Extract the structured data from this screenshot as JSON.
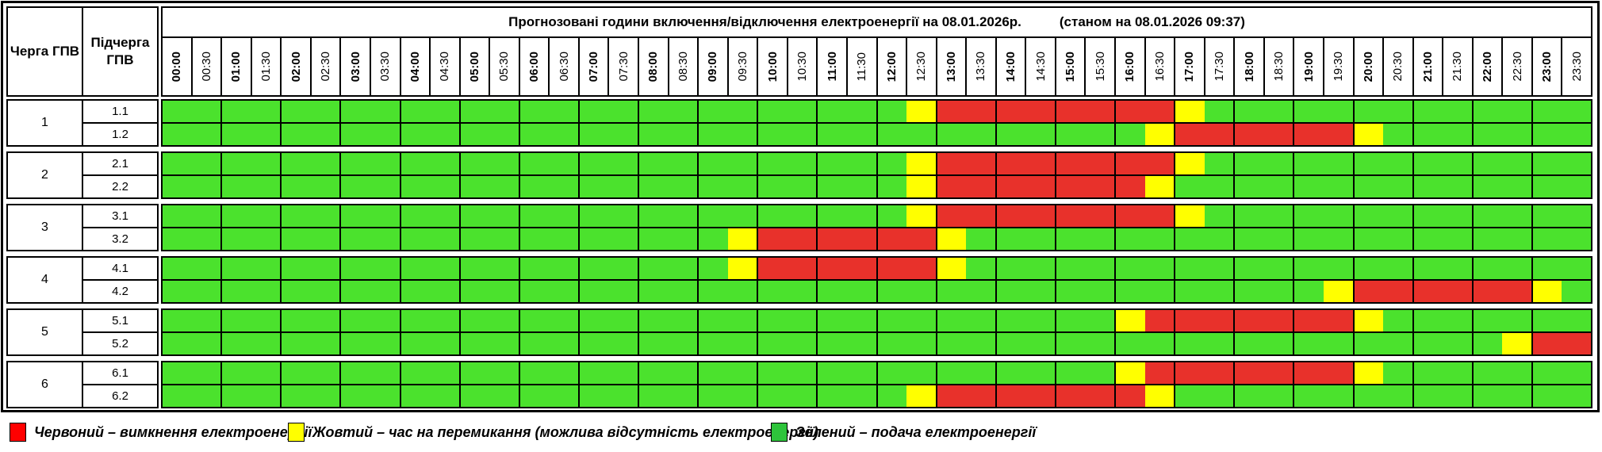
{
  "header": {
    "queue_col": "Черга ГПВ",
    "subqueue_col": "Підчерга ГПВ",
    "title": "Прогнозовані години включення/відключення електроенергії на 08.01.2026р.",
    "status": "(станом на 08.01.2026 09:37)"
  },
  "colors": {
    "cell_green": "#4BE22D",
    "cell_red": "#E8312B",
    "cell_yellow": "#FFFF00",
    "legend_red": "#FF0000",
    "legend_yellow": "#FFFF00",
    "legend_green": "#2EC43B"
  },
  "legend": {
    "red": "Червоний – вимкнення електроенергії",
    "yellow": "Жовтий – час на перемикання (можлива відсутність електроенергії)",
    "green": "Зелений – подача електроенергії"
  },
  "chart_data": {
    "type": "heatmap",
    "title": "Прогнозовані години включення/відключення електроенергії на 08.01.2026р.",
    "status": "(станом на 08.01.2026 09:37)",
    "x_labels": [
      "00:00",
      "00:30",
      "01:00",
      "01:30",
      "02:00",
      "02:30",
      "03:00",
      "03:30",
      "04:00",
      "04:30",
      "05:00",
      "05:30",
      "06:00",
      "06:30",
      "07:00",
      "07:30",
      "08:00",
      "08:30",
      "09:00",
      "09:30",
      "10:00",
      "10:30",
      "11:00",
      "11:30",
      "12:00",
      "12:30",
      "13:00",
      "13:30",
      "14:00",
      "14:30",
      "15:00",
      "15:30",
      "16:00",
      "16:30",
      "17:00",
      "17:30",
      "18:00",
      "18:30",
      "19:00",
      "19:30",
      "20:00",
      "20:30",
      "21:00",
      "21:30",
      "22:00",
      "22:30",
      "23:00",
      "23:30"
    ],
    "state_colors": {
      "G": "#4BE22D",
      "R": "#E8312B",
      "Y": "#FFFF00"
    },
    "state_meanings": {
      "G": "Зелений – подача електроенергії",
      "R": "Червоний – вимкнення електроенергії",
      "Y": "Жовтий – час на перемикання (можлива відсутність електроенергії)"
    },
    "groups": [
      {
        "queue": "1",
        "rows": [
          {
            "label": "1.1",
            "cells": "GGGGGGGGGGGGGGGGGGGGGGGGGYRRRRRRRRYGGGGGGGGGGGGG"
          },
          {
            "label": "1.2",
            "cells": "GGGGGGGGGGGGGGGGGGGGGGGGGGGGGGGGGYRRRRRRYGGGGGGG"
          }
        ]
      },
      {
        "queue": "2",
        "rows": [
          {
            "label": "2.1",
            "cells": "GGGGGGGGGGGGGGGGGGGGGGGGGYRRRRRRRRYGGGGGGGGGGGGG"
          },
          {
            "label": "2.2",
            "cells": "GGGGGGGGGGGGGGGGGGGGGGGGGYRRRRRRRYGGGGGGGGGGGGGG"
          }
        ]
      },
      {
        "queue": "3",
        "rows": [
          {
            "label": "3.1",
            "cells": "GGGGGGGGGGGGGGGGGGGGGGGGGYRRRRRRRRYGGGGGGGGGGGGG"
          },
          {
            "label": "3.2",
            "cells": "GGGGGGGGGGGGGGGGGGGYRRRRRRYGGGGGGGGGGGGGGGGGGGGG"
          }
        ]
      },
      {
        "queue": "4",
        "rows": [
          {
            "label": "4.1",
            "cells": "GGGGGGGGGGGGGGGGGGGYRRRRRRYGGGGGGGGGGGGGGGGGGGGG"
          },
          {
            "label": "4.2",
            "cells": "GGGGGGGGGGGGGGGGGGGGGGGGGGGGGGGGGGGGGGGYRRRRRRYG"
          }
        ]
      },
      {
        "queue": "5",
        "rows": [
          {
            "label": "5.1",
            "cells": "GGGGGGGGGGGGGGGGGGGGGGGGGGGGGGGGYRRRRRRRYGGGGGGG"
          },
          {
            "label": "5.2",
            "cells": "GGGGGGGGGGGGGGGGGGGGGGGGGGGGGGGGGGGGGGGGGGGGGYRR"
          }
        ]
      },
      {
        "queue": "6",
        "rows": [
          {
            "label": "6.1",
            "cells": "GGGGGGGGGGGGGGGGGGGGGGGGGGGGGGGGYRRRRRRRYGGGGGGG"
          },
          {
            "label": "6.2",
            "cells": "GGGGGGGGGGGGGGGGGGGGGGGGGYRRRRRRRYGGGGGGGGGGGGGG"
          }
        ]
      }
    ]
  }
}
